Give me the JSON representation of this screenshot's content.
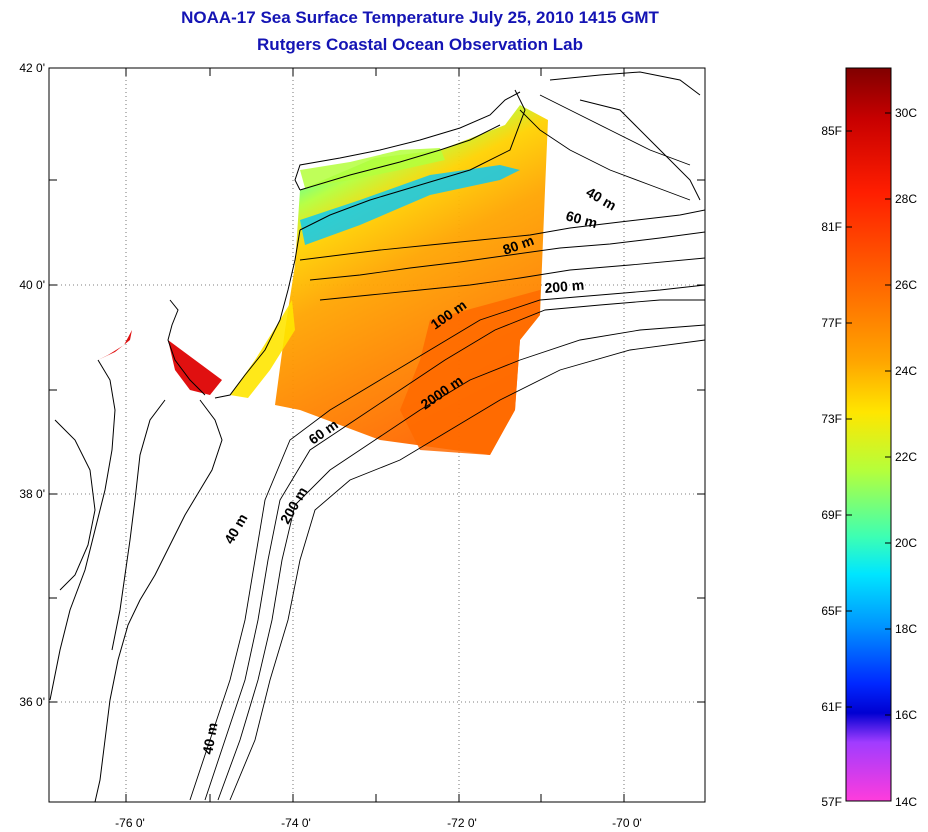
{
  "title": {
    "line1": "NOAA-17 Sea Surface Temperature July 25, 2010 1415 GMT",
    "line2": "Rutgers Coastal Ocean Observation Lab"
  },
  "map": {
    "lat_labels": [
      "42 0'",
      "40 0'",
      "38 0'",
      "36 0'"
    ],
    "lon_labels": [
      "-76 0'",
      "-74 0'",
      "-72 0'",
      "-70 0'"
    ],
    "isobath_labels": [
      "40 m",
      "60 m",
      "80 m",
      "200 m",
      "100 m",
      "2000 m",
      "60 m",
      "40 m",
      "200 m",
      "40 m"
    ]
  },
  "colorbar": {
    "fahrenheit": [
      "85F",
      "81F",
      "77F",
      "73F",
      "69F",
      "65F",
      "61F",
      "57F"
    ],
    "celsius": [
      "30C",
      "28C",
      "26C",
      "24C",
      "22C",
      "20C",
      "18C",
      "16C",
      "14C"
    ],
    "colors": [
      "#800000",
      "#c80000",
      "#ff1e00",
      "#ff6a00",
      "#ffa500",
      "#ffe600",
      "#b4ff3c",
      "#3cffb4",
      "#00e6ff",
      "#0096ff",
      "#0028ff",
      "#0000d2",
      "#a03cff",
      "#ff3cdc",
      "#ff50c8"
    ]
  }
}
